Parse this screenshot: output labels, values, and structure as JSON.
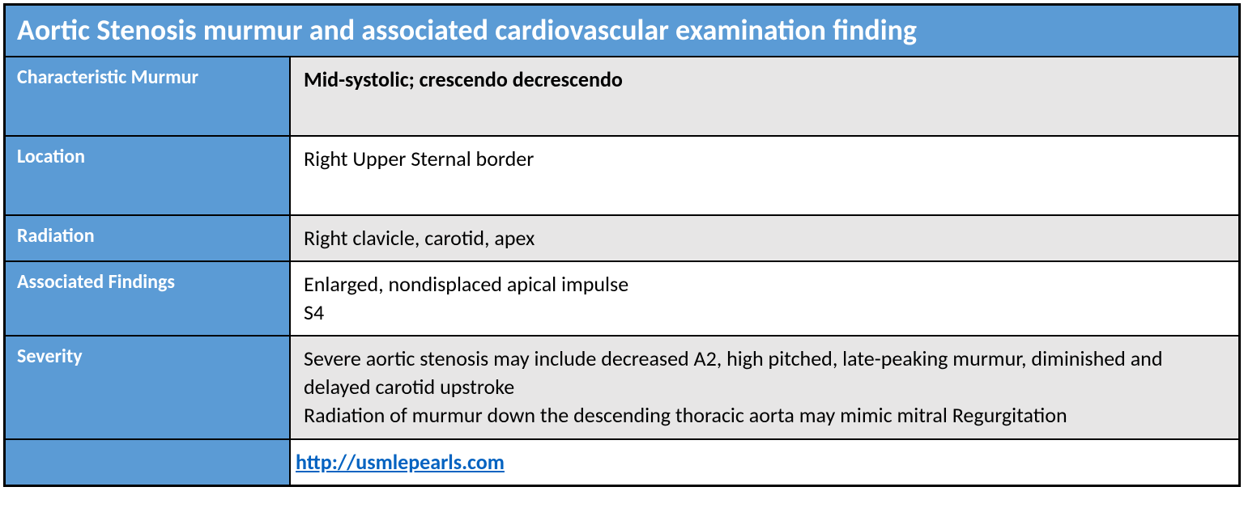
{
  "colors": {
    "header_bg": "#5b9bd5",
    "header_text": "#ffffff",
    "row_shaded_bg": "#e7e6e6",
    "row_plain_bg": "#ffffff",
    "body_text": "#000000",
    "link_color": "#0563c1",
    "border_color": "#000000"
  },
  "typography": {
    "title_fontsize": 36,
    "label_fontsize": 24,
    "value_fontsize": 26,
    "font_family": "Calibri"
  },
  "table": {
    "title": "Aortic Stenosis murmur and associated cardiovascular examination finding",
    "rows": [
      {
        "label": "Characteristic Murmur",
        "value": "Mid-systolic; crescendo decrescendo",
        "shaded": true,
        "bold": true
      },
      {
        "label": "Location",
        "value": "Right Upper Sternal border",
        "shaded": false,
        "bold": false
      },
      {
        "label": "Radiation",
        "value": "Right clavicle, carotid, apex",
        "shaded": true,
        "bold": false
      },
      {
        "label": "Associated Findings",
        "value": "Enlarged, nondisplaced apical impulse\nS4",
        "shaded": false,
        "bold": false
      },
      {
        "label": "Severity",
        "value": "Severe aortic stenosis may include decreased A2, high pitched, late-peaking murmur, diminished and delayed carotid upstroke\nRadiation of murmur down the descending thoracic aorta may mimic mitral Regurgitation",
        "shaded": true,
        "bold": false
      }
    ],
    "footer": {
      "label": "",
      "link_text": " http://usmlepearls.com",
      "link_href": "http://usmlepearls.com"
    }
  }
}
